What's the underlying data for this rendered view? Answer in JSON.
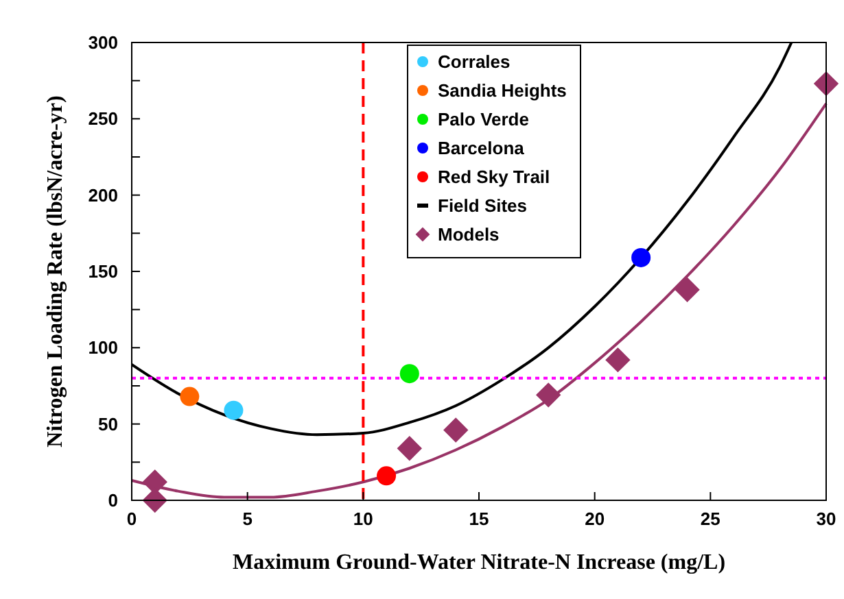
{
  "chart_data": {
    "type": "scatter",
    "xlabel": "Maximum Ground-Water Nitrate-N Increase (mg/L)",
    "ylabel": "Nitrogen Loading Rate (lbsN/acre-yr)",
    "xlim": [
      0,
      30
    ],
    "ylim": [
      0,
      300
    ],
    "xticks": [
      0,
      5,
      10,
      15,
      20,
      25,
      30
    ],
    "yticks": [
      0,
      {
        "value": 25,
        "label": null
      },
      50,
      {
        "value": 75,
        "label": null
      },
      100,
      {
        "value": 125,
        "label": null
      },
      150,
      {
        "value": 175,
        "label": null
      },
      200,
      {
        "value": 225,
        "label": null
      },
      250,
      {
        "value": 275,
        "label": null
      },
      300
    ],
    "grid": false,
    "legend": "top",
    "ref_lines": [
      {
        "axis": "x",
        "value": 10,
        "color": "#ff0000",
        "line_style": "dashed"
      },
      {
        "axis": "y",
        "value": 80,
        "color": "#ff00ff",
        "line_style": "dotted"
      }
    ],
    "series": [
      {
        "name": "Corrales",
        "marker": "circle",
        "color": "#33ccff",
        "x": [
          4.4
        ],
        "values": [
          59
        ]
      },
      {
        "name": "Sandia Heights",
        "marker": "circle",
        "color": "#ff6600",
        "x": [
          2.5
        ],
        "values": [
          68
        ]
      },
      {
        "name": "Palo Verde",
        "marker": "circle",
        "color": "#00ee00",
        "x": [
          12
        ],
        "values": [
          83
        ]
      },
      {
        "name": "Barcelona",
        "marker": "circle",
        "color": "#0000ff",
        "x": [
          22
        ],
        "values": [
          159
        ]
      },
      {
        "name": "Red Sky Trail",
        "marker": "circle",
        "color": "#ff0000",
        "x": [
          11
        ],
        "values": [
          16
        ]
      },
      {
        "name": "Field Sites",
        "type": "line",
        "marker": "none",
        "color": "#000000",
        "x": [
          0,
          2,
          4,
          6,
          8,
          10,
          12,
          14,
          16,
          18,
          20,
          22,
          24,
          26,
          28,
          28.5
        ],
        "values": [
          89,
          70,
          56,
          47,
          43,
          44,
          51,
          62,
          79,
          100,
          127,
          159,
          196,
          238,
          284,
          300
        ]
      },
      {
        "name": "Models",
        "marker": "diamond",
        "color": "#993366",
        "x": [
          1,
          1,
          12,
          14,
          18,
          21,
          24,
          30
        ],
        "values": [
          12,
          0,
          34,
          46,
          69,
          92,
          138,
          273
        ]
      },
      {
        "type": "line",
        "marker": "none",
        "color": "#993366",
        "x": [
          0,
          2,
          4,
          6,
          8,
          10,
          12,
          14,
          16,
          18,
          20,
          22,
          24,
          26,
          28,
          30
        ],
        "values": [
          13,
          6,
          2,
          2,
          6,
          12,
          21,
          33,
          48,
          66,
          90,
          117,
          147,
          180,
          217,
          260
        ]
      }
    ]
  }
}
